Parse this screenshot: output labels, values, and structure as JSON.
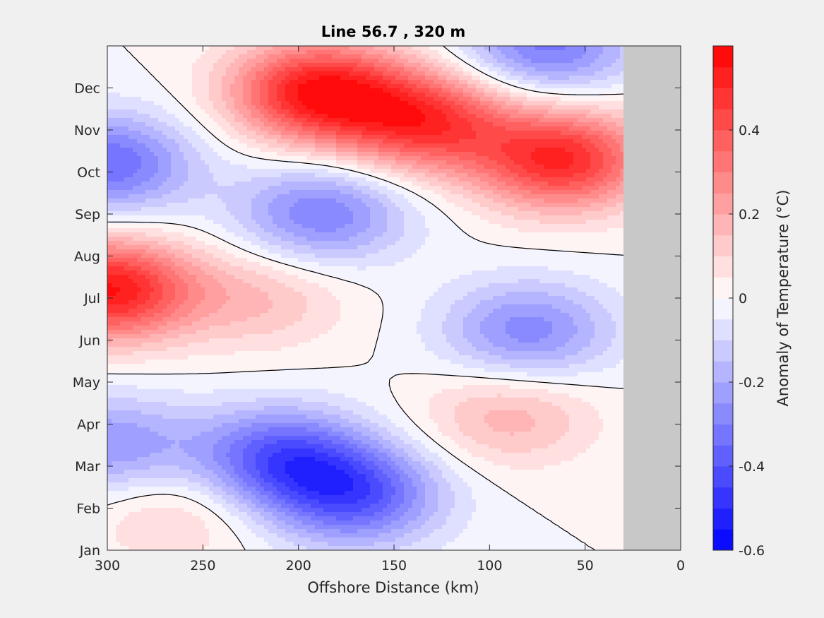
{
  "chart_data": {
    "type": "contour",
    "title": "Line 56.7 , 320 m",
    "xlabel": "Offshore Distance (km)",
    "ylabel": "",
    "xlim": [
      300,
      0
    ],
    "x_ticks": [
      "300",
      "250",
      "200",
      "150",
      "100",
      "50",
      "0"
    ],
    "y_ticks": [
      "Jan",
      "Feb",
      "Mar",
      "Apr",
      "May",
      "Jun",
      "Jul",
      "Aug",
      "Sep",
      "Oct",
      "Nov",
      "Dec"
    ],
    "data_extent_km": [
      300,
      30
    ],
    "no_data_region_km": [
      30,
      0
    ],
    "colorbar": {
      "label": "Anomaly of Temperature (°C)",
      "clim": [
        -0.6,
        0.6
      ],
      "ticks": [
        "0.4",
        "0.2",
        "0",
        "-0.2",
        "-0.4",
        "-0.6"
      ],
      "tick_values": [
        0.4,
        0.2,
        0,
        -0.2,
        -0.4,
        -0.6
      ],
      "levels": 24
    },
    "features": [
      {
        "x_km": 190,
        "month": 10.9,
        "value": 0.55
      },
      {
        "x_km": 133,
        "month": 10.2,
        "value": 0.45
      },
      {
        "x_km": 62,
        "month": 9.3,
        "value": 0.5
      },
      {
        "x_km": 300,
        "month": 6.2,
        "value": 0.55
      },
      {
        "x_km": 220,
        "month": 6.0,
        "value": 0.15
      },
      {
        "x_km": 90,
        "month": 3.2,
        "value": 0.18
      },
      {
        "x_km": 265,
        "month": 0.9,
        "value": 0.12
      },
      {
        "x_km": 300,
        "month": 9.2,
        "value": -0.35
      },
      {
        "x_km": 188,
        "month": 8.0,
        "value": -0.3
      },
      {
        "x_km": 70,
        "month": 12.0,
        "value": -0.32
      },
      {
        "x_km": 80,
        "month": 5.2,
        "value": -0.28
      },
      {
        "x_km": 210,
        "month": 2.2,
        "value": -0.38
      },
      {
        "x_km": 170,
        "month": 1.3,
        "value": -0.38
      },
      {
        "x_km": 300,
        "month": 2.5,
        "value": -0.25
      }
    ],
    "colors": {
      "positive_max": "#ff0000",
      "zero": "#ffffff",
      "negative_max": "#0000ff",
      "no_data": "#c8c8c8",
      "figure_bg": "#f0f0f0",
      "contour_line": "#000000"
    }
  }
}
